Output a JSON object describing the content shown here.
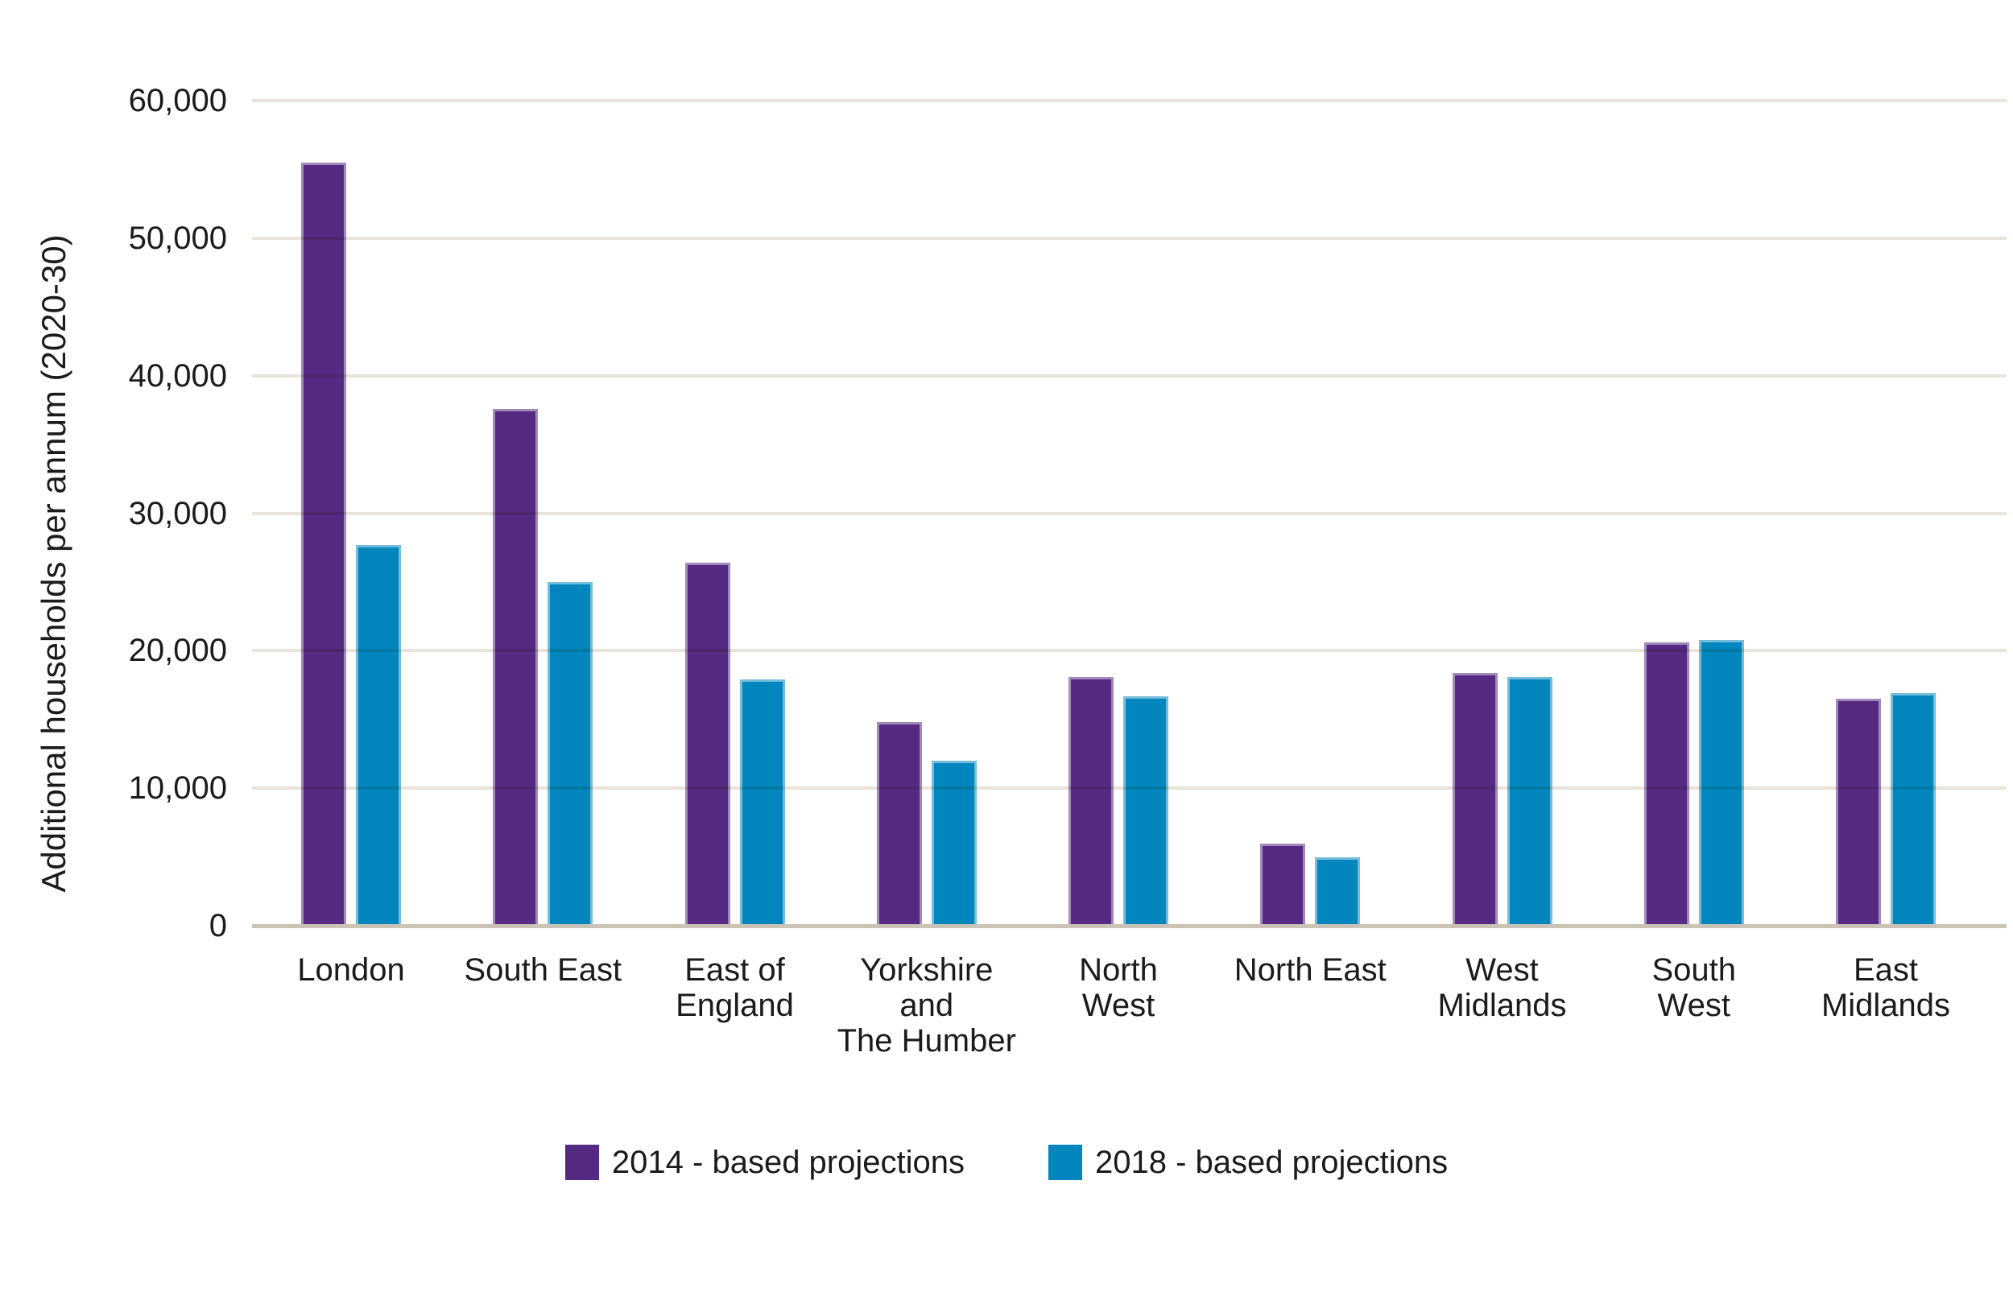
{
  "chart_data": {
    "type": "bar",
    "title": "",
    "ylabel": "Additional households per annum (2020-30)",
    "xlabel": "",
    "ylim": [
      0,
      60000
    ],
    "ytick_step": 10000,
    "yticks": [
      "60,000",
      "50,000",
      "40,000",
      "30,000",
      "20,000",
      "10,000",
      "0"
    ],
    "grid": true,
    "legend_position": "bottom",
    "categories": [
      "London",
      "South East",
      "East of England",
      "Yorkshire and The Humber",
      "North West",
      "North East",
      "West Midlands",
      "South West",
      "East Midlands"
    ],
    "category_label_lines": [
      [
        "London"
      ],
      [
        "South East"
      ],
      [
        "East of",
        "England"
      ],
      [
        "Yorkshire",
        "and",
        "The Humber"
      ],
      [
        "North",
        "West"
      ],
      [
        "North East"
      ],
      [
        "West",
        "Midlands"
      ],
      [
        "South",
        "West"
      ],
      [
        "East",
        "Midlands"
      ]
    ],
    "series": [
      {
        "name": "2014 - based projections",
        "color": "#542a82",
        "values": [
          55500,
          37600,
          26400,
          14800,
          18100,
          6000,
          18400,
          20600,
          16500
        ]
      },
      {
        "name": "2018 - based projections",
        "color": "#0286bd",
        "values": [
          27700,
          25000,
          17900,
          12000,
          16700,
          5000,
          18100,
          20800,
          16900
        ]
      }
    ]
  },
  "colors": {
    "background": "#ffffff",
    "gridline": "#e8e4db",
    "axis_line": "#cbc3b5",
    "text": "#1b1b1b",
    "series_2014": "#542a82",
    "series_2018": "#0286bd"
  }
}
